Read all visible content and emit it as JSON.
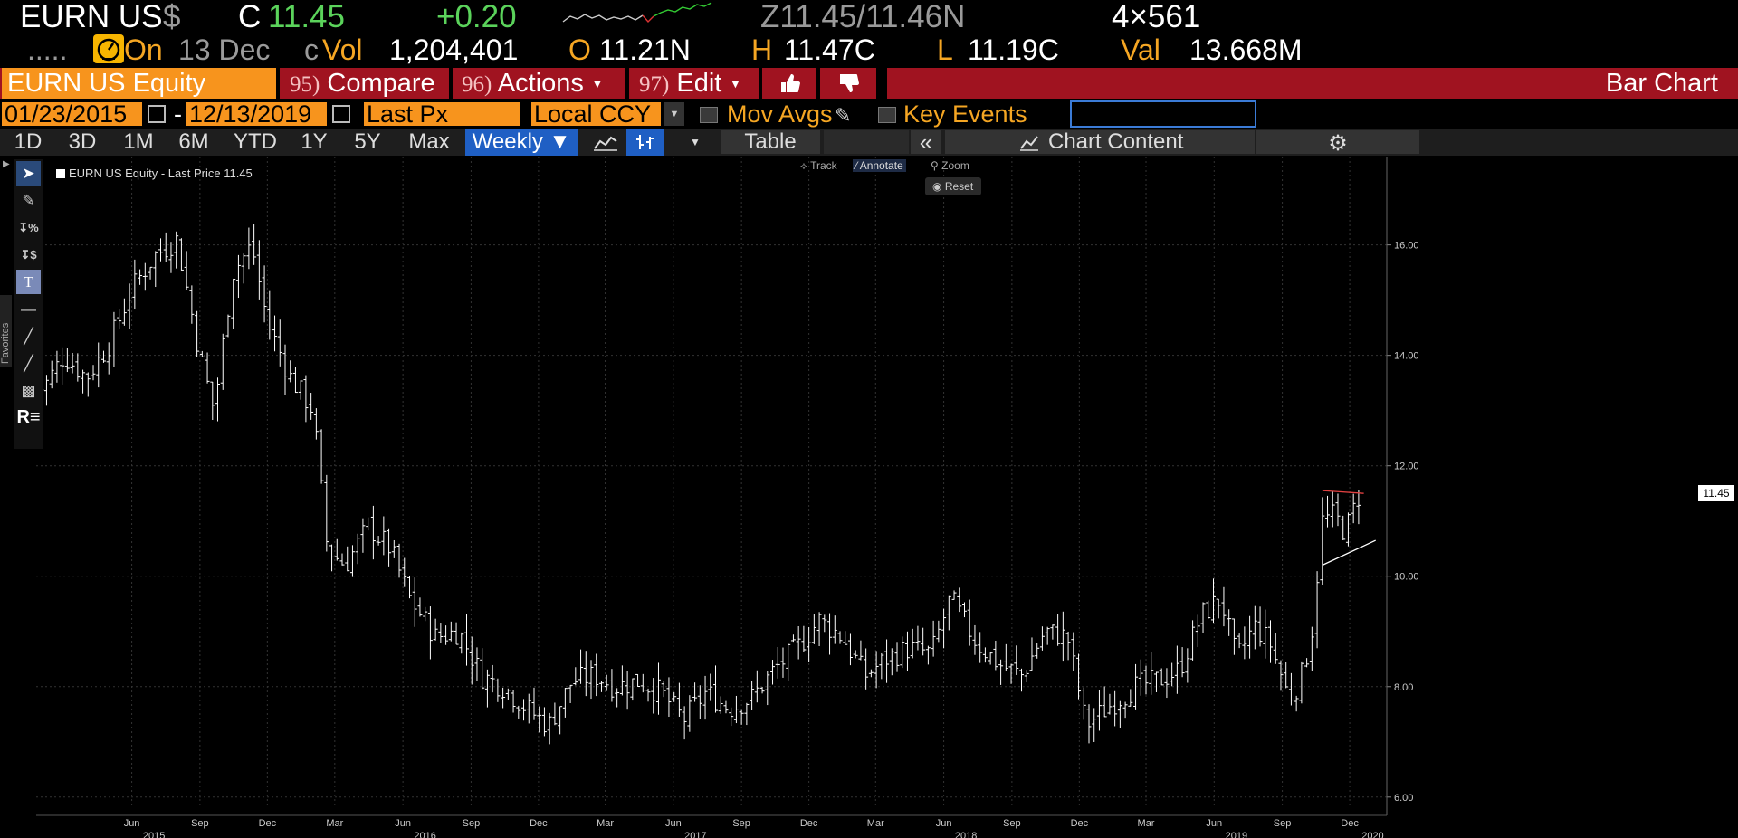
{
  "quote": {
    "ticker": "EURN US",
    "currency": "$",
    "last_label": "C",
    "last": "11.45",
    "change": "+0.20",
    "bid_ask": "Z11.45/11.46N",
    "size": "4×561"
  },
  "stats": {
    "dots": ".....",
    "on_label": "On",
    "date": "13 Dec",
    "date_suffix": "c",
    "vol_label": "Vol",
    "vol": "1,204,401",
    "open_label": "O",
    "open": "11.21N",
    "high_label": "H",
    "high": "11.47C",
    "low_label": "L",
    "low": "11.19C",
    "val_label": "Val",
    "val": "13.668M"
  },
  "toolbar": {
    "security": "EURN US Equity",
    "compare_num": "95)",
    "compare": "Compare",
    "actions_num": "96)",
    "actions": "Actions",
    "edit_num": "97)",
    "edit": "Edit",
    "chart_title": "Bar Chart"
  },
  "range": {
    "start": "01/23/2015",
    "dash": "-",
    "end": "12/13/2019",
    "field": "Last Px",
    "ccy": "Local CCY",
    "mov_avgs": "Mov Avgs",
    "key_events": "Key Events"
  },
  "periods": {
    "items": [
      "1D",
      "3D",
      "1M",
      "6M",
      "YTD",
      "1Y",
      "5Y",
      "Max"
    ],
    "frequency": "Weekly ▼",
    "table": "Table",
    "collapse": "«",
    "chart_content": "Chart Content"
  },
  "chart_tools": {
    "track": "Track",
    "annotate": "Annotate",
    "zoom": "Zoom",
    "reset": "Reset",
    "favorites": "Favorites"
  },
  "chart_data": {
    "type": "bar",
    "subtype": "ohlc-weekly",
    "legend": "EURN US Equity - Last Price 11.45",
    "last_price_label": "11.45",
    "ylim": [
      5.8,
      17.6
    ],
    "yticks": [
      "6.00",
      "8.00",
      "10.00",
      "12.00",
      "14.00",
      "16.00"
    ],
    "ytick_values": [
      6,
      8,
      10,
      12,
      14,
      16
    ],
    "xtick_labels": [
      "Jun",
      "Sep",
      "Dec",
      "Mar",
      "Jun",
      "Sep",
      "Dec",
      "Mar",
      "Jun",
      "Sep",
      "Dec",
      "Mar",
      "Jun",
      "Sep",
      "Dec",
      "Mar",
      "Jun",
      "Sep",
      "Dec"
    ],
    "xtick_dates": [
      "2015-06-01",
      "2015-09-01",
      "2015-12-01",
      "2016-03-01",
      "2016-06-01",
      "2016-09-01",
      "2016-12-01",
      "2017-03-01",
      "2017-06-01",
      "2017-09-01",
      "2017-12-01",
      "2018-03-01",
      "2018-06-01",
      "2018-09-01",
      "2018-12-01",
      "2019-03-01",
      "2019-06-01",
      "2019-09-01",
      "2019-12-01"
    ],
    "year_labels": [
      "2015",
      "2016",
      "2017",
      "2018",
      "2019",
      "2020"
    ],
    "year_dates": [
      "2015-07-01",
      "2016-07-01",
      "2017-07-01",
      "2018-07-01",
      "2019-07-01",
      "2020-01-01"
    ],
    "x_range": [
      "2015-01-23",
      "2020-01-20"
    ],
    "close_series": [
      [
        "2015-02-01",
        13.4
      ],
      [
        "2015-03-01",
        14.0
      ],
      [
        "2015-04-01",
        13.6
      ],
      [
        "2015-05-01",
        14.2
      ],
      [
        "2015-06-01",
        15.2
      ],
      [
        "2015-07-01",
        15.8
      ],
      [
        "2015-08-01",
        16.1
      ],
      [
        "2015-09-01",
        14.0
      ],
      [
        "2015-09-20",
        13.0
      ],
      [
        "2015-10-15",
        15.5
      ],
      [
        "2015-11-10",
        16.0
      ],
      [
        "2015-12-01",
        14.6
      ],
      [
        "2016-01-01",
        13.6
      ],
      [
        "2016-02-01",
        13.0
      ],
      [
        "2016-02-20",
        10.5
      ],
      [
        "2016-03-15",
        10.2
      ],
      [
        "2016-04-15",
        10.9
      ],
      [
        "2016-05-15",
        10.5
      ],
      [
        "2016-06-10",
        9.6
      ],
      [
        "2016-07-15",
        8.9
      ],
      [
        "2016-08-15",
        9.0
      ],
      [
        "2016-09-15",
        8.2
      ],
      [
        "2016-10-15",
        8.0
      ],
      [
        "2016-11-15",
        7.6
      ],
      [
        "2016-12-15",
        7.3
      ],
      [
        "2017-01-15",
        8.1
      ],
      [
        "2017-02-15",
        8.2
      ],
      [
        "2017-03-15",
        8.0
      ],
      [
        "2017-04-15",
        8.1
      ],
      [
        "2017-05-15",
        7.9
      ],
      [
        "2017-06-15",
        7.4
      ],
      [
        "2017-07-15",
        7.9
      ],
      [
        "2017-08-15",
        7.6
      ],
      [
        "2017-09-15",
        7.8
      ],
      [
        "2017-10-15",
        8.3
      ],
      [
        "2017-11-15",
        8.7
      ],
      [
        "2017-12-15",
        9.2
      ],
      [
        "2018-01-15",
        8.9
      ],
      [
        "2018-02-15",
        8.2
      ],
      [
        "2018-03-15",
        8.5
      ],
      [
        "2018-04-15",
        8.7
      ],
      [
        "2018-05-15",
        8.6
      ],
      [
        "2018-06-10",
        9.6
      ],
      [
        "2018-07-15",
        8.8
      ],
      [
        "2018-08-15",
        8.4
      ],
      [
        "2018-09-15",
        8.2
      ],
      [
        "2018-10-15",
        9.0
      ],
      [
        "2018-11-15",
        8.9
      ],
      [
        "2018-12-10",
        7.3
      ],
      [
        "2019-01-15",
        7.7
      ],
      [
        "2019-02-15",
        8.0
      ],
      [
        "2019-03-15",
        8.1
      ],
      [
        "2019-04-15",
        8.3
      ],
      [
        "2019-05-15",
        9.3
      ],
      [
        "2019-06-10",
        9.6
      ],
      [
        "2019-07-01",
        8.5
      ],
      [
        "2019-07-25",
        9.1
      ],
      [
        "2019-08-15",
        8.8
      ],
      [
        "2019-09-10",
        7.8
      ],
      [
        "2019-09-25",
        8.1
      ],
      [
        "2019-10-10",
        8.9
      ],
      [
        "2019-10-25",
        11.0
      ],
      [
        "2019-11-10",
        11.1
      ],
      [
        "2019-11-25",
        10.8
      ],
      [
        "2019-12-13",
        11.45
      ]
    ],
    "annotations": [
      {
        "type": "horizontal",
        "color": "#e04040",
        "from": [
          "2019-10-25",
          11.55
        ],
        "to": [
          "2019-12-20",
          11.5
        ]
      },
      {
        "type": "trend",
        "color": "#ffffff",
        "from": [
          "2019-10-25",
          10.2
        ],
        "to": [
          "2020-01-05",
          10.65
        ]
      }
    ],
    "colors": {
      "bars": "#ffffff",
      "grid": "#333333",
      "background": "#000000"
    },
    "grid": true
  }
}
